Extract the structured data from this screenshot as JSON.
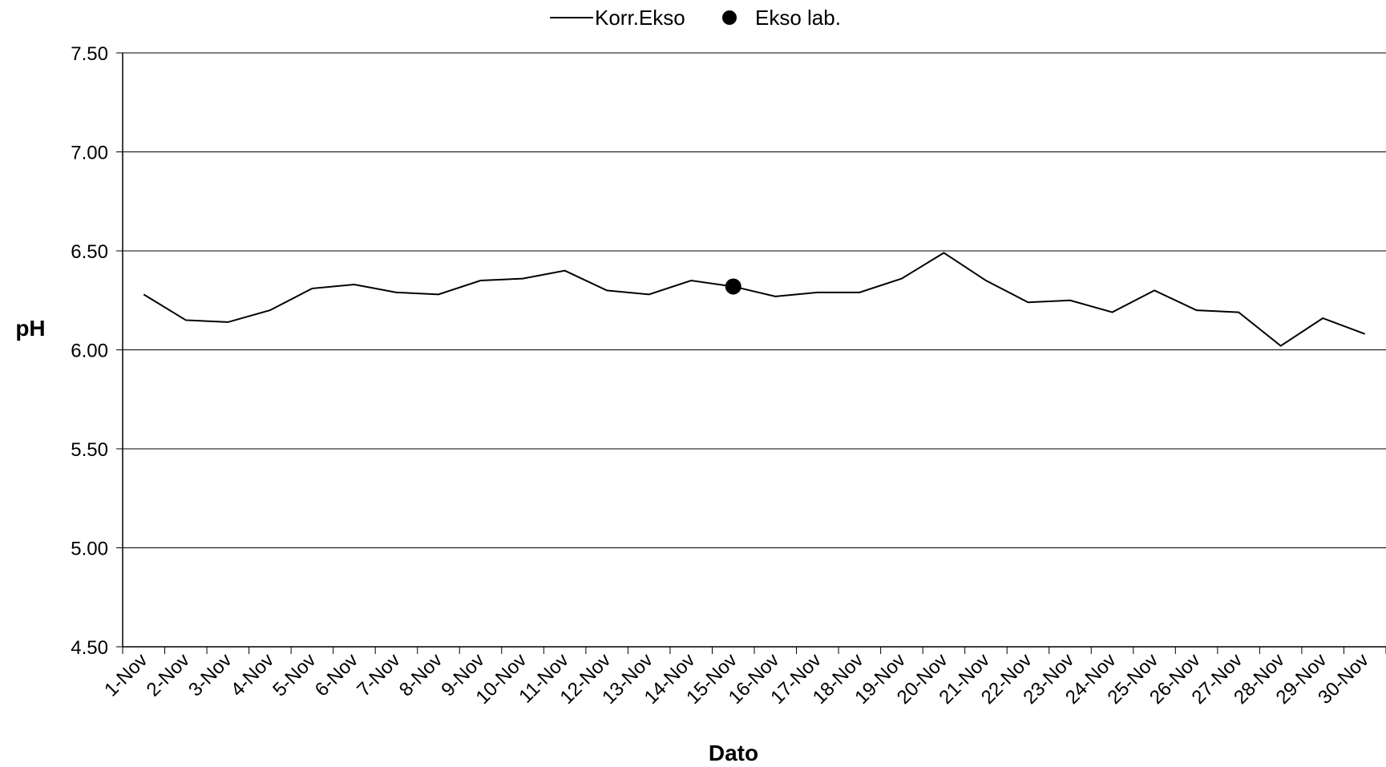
{
  "chart_data": {
    "type": "line",
    "title": "",
    "xlabel": "Dato",
    "ylabel": "pH",
    "ylim": [
      4.5,
      7.5
    ],
    "y_ticks": [
      "4.50",
      "5.00",
      "5.50",
      "6.00",
      "6.50",
      "7.00",
      "7.50"
    ],
    "grid": "horizontal",
    "legend_position": "top",
    "categories": [
      "1-Nov",
      "2-Nov",
      "3-Nov",
      "4-Nov",
      "5-Nov",
      "6-Nov",
      "7-Nov",
      "8-Nov",
      "9-Nov",
      "10-Nov",
      "11-Nov",
      "12-Nov",
      "13-Nov",
      "14-Nov",
      "15-Nov",
      "16-Nov",
      "17-Nov",
      "18-Nov",
      "19-Nov",
      "20-Nov",
      "21-Nov",
      "22-Nov",
      "23-Nov",
      "24-Nov",
      "25-Nov",
      "26-Nov",
      "27-Nov",
      "28-Nov",
      "29-Nov",
      "30-Nov"
    ],
    "series": [
      {
        "name": "Korr.Ekso",
        "kind": "line",
        "color": "#000000",
        "values": [
          6.28,
          6.15,
          6.14,
          6.2,
          6.31,
          6.33,
          6.29,
          6.28,
          6.35,
          6.36,
          6.4,
          6.3,
          6.28,
          6.35,
          6.32,
          6.27,
          6.29,
          6.29,
          6.36,
          6.49,
          6.35,
          6.24,
          6.25,
          6.19,
          6.3,
          6.2,
          6.19,
          6.02,
          6.16,
          6.08
        ]
      },
      {
        "name": "Ekso lab.",
        "kind": "marker",
        "color": "#000000",
        "points": [
          {
            "x": "15-Nov",
            "y": 6.32
          }
        ]
      }
    ]
  }
}
